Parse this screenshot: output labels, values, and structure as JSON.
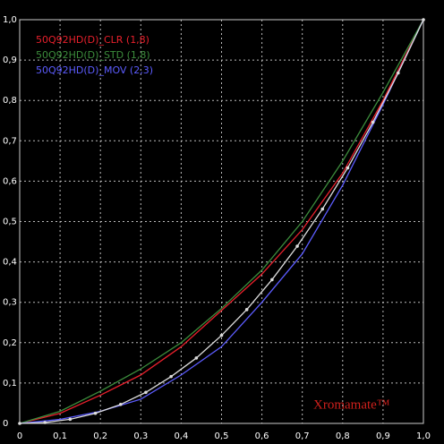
{
  "chart_data": {
    "type": "line",
    "background": "#000000",
    "grid": true,
    "xlim": [
      0,
      1
    ],
    "ylim": [
      0,
      1
    ],
    "xticks": [
      0,
      {
        "value": 0.1,
        "label": "0,1"
      },
      {
        "value": 0.2,
        "label": "0,2"
      },
      {
        "value": 0.3,
        "label": "0,3"
      },
      {
        "value": 0.4,
        "label": "0,4"
      },
      {
        "value": 0.5,
        "label": "0,5"
      },
      {
        "value": 0.6,
        "label": "0,6"
      },
      {
        "value": 0.7,
        "label": "0,7"
      },
      {
        "value": 0.8,
        "label": "0,8"
      },
      {
        "value": 0.9,
        "label": "0,9"
      },
      {
        "value": 1,
        "label": "1,0"
      }
    ],
    "yticks": [
      0,
      {
        "value": 0.1,
        "label": "0,1"
      },
      {
        "value": 0.2,
        "label": "0,2"
      },
      {
        "value": 0.3,
        "label": "0,3"
      },
      {
        "value": 0.4,
        "label": "0,4"
      },
      {
        "value": 0.5,
        "label": "0,5"
      },
      {
        "value": 0.6,
        "label": "0,6"
      },
      {
        "value": 0.7,
        "label": "0,7"
      },
      {
        "value": 0.8,
        "label": "0,8"
      },
      {
        "value": 0.9,
        "label": "0,9"
      },
      {
        "value": 1,
        "label": "1,0"
      }
    ],
    "series": [
      {
        "name": "50Q92HD(D)_CLR (1,8)",
        "color": "#e8202c",
        "x": [
          0,
          0.1,
          0.2,
          0.3,
          0.4,
          0.5,
          0.6,
          0.7,
          0.8,
          0.9,
          1
        ],
        "values": [
          0,
          0.025,
          0.07,
          0.12,
          0.19,
          0.28,
          0.37,
          0.48,
          0.62,
          0.8,
          1
        ]
      },
      {
        "name": "50Q92HD(D)_STD (1,8)",
        "color": "#3c8c3c",
        "x": [
          0,
          0.1,
          0.2,
          0.3,
          0.4,
          0.5,
          0.6,
          0.7,
          0.8,
          0.9,
          1
        ],
        "values": [
          0,
          0.03,
          0.08,
          0.135,
          0.2,
          0.285,
          0.38,
          0.5,
          0.65,
          0.82,
          1
        ]
      },
      {
        "name": "50Q92HD(D)_MOV (2,3)",
        "color": "#5c5cff",
        "x": [
          0,
          0.1,
          0.2,
          0.3,
          0.4,
          0.5,
          0.6,
          0.7,
          0.8,
          0.9,
          1
        ],
        "values": [
          0,
          0.01,
          0.03,
          0.06,
          0.12,
          0.19,
          0.3,
          0.42,
          0.59,
          0.79,
          1
        ]
      },
      {
        "color": "#dddddd",
        "markers": true,
        "x": [
          0,
          0.0625,
          0.125,
          0.1875,
          0.25,
          0.3125,
          0.375,
          0.4375,
          0.5,
          0.5625,
          0.625,
          0.6875,
          0.75,
          0.8125,
          0.875,
          0.9375,
          1
        ],
        "values": [
          0,
          0.0022,
          0.0103,
          0.025,
          0.047,
          0.077,
          0.116,
          0.162,
          0.218,
          0.282,
          0.356,
          0.439,
          0.531,
          0.633,
          0.746,
          0.868,
          1
        ]
      }
    ],
    "annotation": "Xromamate™"
  }
}
